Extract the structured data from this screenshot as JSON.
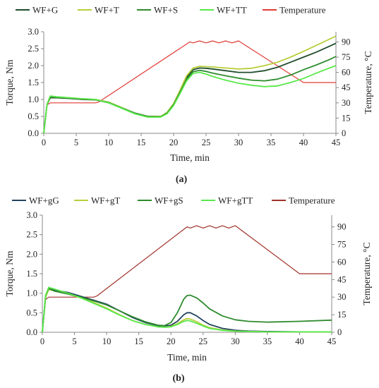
{
  "chart_data": [
    {
      "type": "line",
      "panel_label": "(a)",
      "xlabel": "Time, min",
      "ylabel": "Torque, Nm",
      "y2label": "Temperature, °C",
      "xlim": [
        0,
        45
      ],
      "ylim": [
        0,
        3.0
      ],
      "y2lim": [
        0,
        100
      ],
      "x_ticks": [
        0,
        5,
        10,
        15,
        20,
        25,
        30,
        35,
        40,
        45
      ],
      "y_ticks": [
        "0.0",
        "0.5",
        "1.0",
        "1.5",
        "2.0",
        "2.5",
        "3.0"
      ],
      "y2_ticks": [
        0,
        15,
        30,
        45,
        60,
        75,
        90
      ],
      "grid": false,
      "legend_position": "top",
      "series": [
        {
          "name": "WF+G",
          "axis": "left",
          "color": "#1f4d2b",
          "x": [
            0,
            0.5,
            1,
            2,
            4,
            6,
            8,
            10,
            12,
            14,
            16,
            18,
            19,
            20,
            21,
            22,
            23,
            24,
            25,
            26,
            28,
            30,
            32,
            34,
            36,
            38,
            40,
            42,
            44,
            45
          ],
          "y": [
            0,
            0.85,
            1.05,
            1.05,
            1.03,
            1.0,
            0.99,
            0.9,
            0.75,
            0.6,
            0.5,
            0.5,
            0.6,
            0.85,
            1.25,
            1.65,
            1.88,
            1.93,
            1.92,
            1.9,
            1.85,
            1.8,
            1.8,
            1.85,
            1.95,
            2.1,
            2.25,
            2.4,
            2.57,
            2.66
          ]
        },
        {
          "name": "WF+T",
          "axis": "left",
          "color": "#b8cf3a",
          "x": [
            0,
            0.5,
            1,
            2,
            4,
            6,
            8,
            10,
            12,
            14,
            16,
            18,
            19,
            20,
            21,
            22,
            23,
            24,
            25,
            26,
            28,
            30,
            32,
            34,
            36,
            38,
            40,
            42,
            44,
            45
          ],
          "y": [
            0,
            0.85,
            1.1,
            1.07,
            1.05,
            1.02,
            1.0,
            0.92,
            0.76,
            0.6,
            0.5,
            0.5,
            0.62,
            0.88,
            1.28,
            1.7,
            1.93,
            1.98,
            1.97,
            1.96,
            1.93,
            1.9,
            1.92,
            2.0,
            2.1,
            2.25,
            2.42,
            2.6,
            2.78,
            2.87
          ]
        },
        {
          "name": "WF+S",
          "axis": "left",
          "color": "#2e8b2e",
          "x": [
            0,
            0.5,
            1,
            2,
            4,
            6,
            8,
            10,
            12,
            14,
            16,
            18,
            19,
            20,
            21,
            22,
            23,
            24,
            25,
            26,
            28,
            30,
            32,
            34,
            36,
            38,
            40,
            42,
            44,
            45
          ],
          "y": [
            0,
            0.85,
            1.08,
            1.06,
            1.04,
            1.01,
            0.99,
            0.91,
            0.75,
            0.6,
            0.5,
            0.49,
            0.6,
            0.85,
            1.22,
            1.6,
            1.82,
            1.86,
            1.83,
            1.78,
            1.7,
            1.63,
            1.57,
            1.55,
            1.6,
            1.72,
            1.88,
            2.02,
            2.18,
            2.27
          ]
        },
        {
          "name": "WF+TT",
          "axis": "left",
          "color": "#59e84a",
          "x": [
            0,
            0.5,
            1,
            2,
            4,
            6,
            8,
            10,
            12,
            14,
            16,
            18,
            19,
            20,
            21,
            22,
            23,
            24,
            25,
            26,
            28,
            30,
            32,
            34,
            36,
            38,
            40,
            42,
            44,
            45
          ],
          "y": [
            0,
            0.85,
            1.1,
            1.08,
            1.05,
            1.02,
            1.0,
            0.9,
            0.74,
            0.58,
            0.48,
            0.48,
            0.58,
            0.82,
            1.18,
            1.55,
            1.77,
            1.8,
            1.75,
            1.68,
            1.57,
            1.48,
            1.42,
            1.38,
            1.4,
            1.5,
            1.62,
            1.78,
            1.93,
            2.0
          ]
        },
        {
          "name": "Temperature",
          "axis": "right",
          "color": "#e03a34",
          "x": [
            0,
            0.5,
            1,
            8,
            8.5,
            22.5,
            23,
            24,
            25,
            26,
            27,
            28,
            29,
            30,
            40,
            40.5,
            45
          ],
          "y": [
            0,
            28,
            30,
            30,
            31,
            90,
            89,
            91,
            89,
            91,
            89,
            91,
            89,
            91,
            50,
            50,
            50
          ]
        }
      ]
    },
    {
      "type": "line",
      "panel_label": "(b)",
      "xlabel": "Time, min",
      "ylabel": "Torque, Nm",
      "y2label": "Temperature, °C",
      "xlim": [
        0,
        45
      ],
      "ylim": [
        0,
        3.0
      ],
      "y2lim": [
        0,
        100
      ],
      "x_ticks": [
        0,
        5,
        10,
        15,
        20,
        25,
        30,
        35,
        40,
        45
      ],
      "y_ticks": [
        "0.0",
        "0.5",
        "1.0",
        "1.5",
        "2.0",
        "2.5",
        "3.0"
      ],
      "y2_ticks": [
        0,
        15,
        30,
        45,
        60,
        75,
        90
      ],
      "grid": false,
      "legend_position": "top",
      "series": [
        {
          "name": "WF+gG",
          "axis": "left",
          "color": "#23435f",
          "x": [
            0,
            0.5,
            1,
            2,
            4,
            6,
            8,
            10,
            12,
            14,
            16,
            18,
            19,
            20,
            21,
            22,
            22.5,
            23,
            24,
            25,
            26,
            28,
            30,
            32,
            35,
            40,
            45
          ],
          "y": [
            0,
            0.9,
            1.12,
            1.08,
            1.02,
            0.92,
            0.82,
            0.72,
            0.55,
            0.38,
            0.25,
            0.17,
            0.16,
            0.18,
            0.28,
            0.45,
            0.5,
            0.5,
            0.42,
            0.3,
            0.2,
            0.1,
            0.05,
            0.03,
            0.02,
            0.01,
            0.01
          ]
        },
        {
          "name": "WF+gT",
          "axis": "left",
          "color": "#b8cf3a",
          "x": [
            0,
            0.5,
            1,
            2,
            4,
            6,
            8,
            10,
            12,
            14,
            16,
            18,
            19,
            20,
            21,
            22,
            22.5,
            23,
            24,
            25,
            26,
            28,
            30,
            32,
            35,
            40,
            45
          ],
          "y": [
            0,
            0.9,
            1.1,
            1.05,
            0.98,
            0.88,
            0.76,
            0.62,
            0.45,
            0.3,
            0.2,
            0.14,
            0.13,
            0.15,
            0.22,
            0.32,
            0.35,
            0.34,
            0.27,
            0.18,
            0.12,
            0.06,
            0.03,
            0.02,
            0.01,
            0.01,
            0.01
          ]
        },
        {
          "name": "WF+gS",
          "axis": "left",
          "color": "#2e8b2e",
          "x": [
            0,
            0.5,
            1,
            2,
            4,
            6,
            8,
            10,
            12,
            14,
            16,
            18,
            19,
            20,
            21,
            22,
            22.5,
            23,
            24,
            25,
            26,
            28,
            30,
            32,
            35,
            40,
            45
          ],
          "y": [
            0,
            0.95,
            1.12,
            1.05,
            0.98,
            0.9,
            0.8,
            0.7,
            0.55,
            0.4,
            0.27,
            0.18,
            0.17,
            0.25,
            0.5,
            0.85,
            0.94,
            0.95,
            0.88,
            0.75,
            0.6,
            0.42,
            0.32,
            0.28,
            0.26,
            0.28,
            0.31
          ]
        },
        {
          "name": "WF+gTT",
          "axis": "left",
          "color": "#59e84a",
          "x": [
            0,
            0.5,
            1,
            2,
            4,
            6,
            8,
            10,
            12,
            14,
            16,
            18,
            19,
            20,
            21,
            22,
            22.5,
            23,
            24,
            25,
            26,
            28,
            30,
            32,
            35,
            40,
            45
          ],
          "y": [
            0,
            0.95,
            1.15,
            1.1,
            1.0,
            0.88,
            0.74,
            0.6,
            0.44,
            0.3,
            0.2,
            0.14,
            0.13,
            0.14,
            0.2,
            0.28,
            0.3,
            0.29,
            0.23,
            0.16,
            0.1,
            0.05,
            0.03,
            0.02,
            0.01,
            0.01,
            0.01
          ]
        },
        {
          "name": "Temperature",
          "axis": "right",
          "color": "#a0322a",
          "x": [
            0,
            0.5,
            1,
            8,
            8.5,
            22.5,
            23,
            24,
            25,
            26,
            27,
            28,
            29,
            30,
            40,
            40.5,
            45
          ],
          "y": [
            0,
            28,
            30,
            30,
            31,
            90,
            89,
            91,
            89,
            91,
            89,
            91,
            89,
            91,
            50,
            50,
            50
          ]
        }
      ]
    }
  ]
}
